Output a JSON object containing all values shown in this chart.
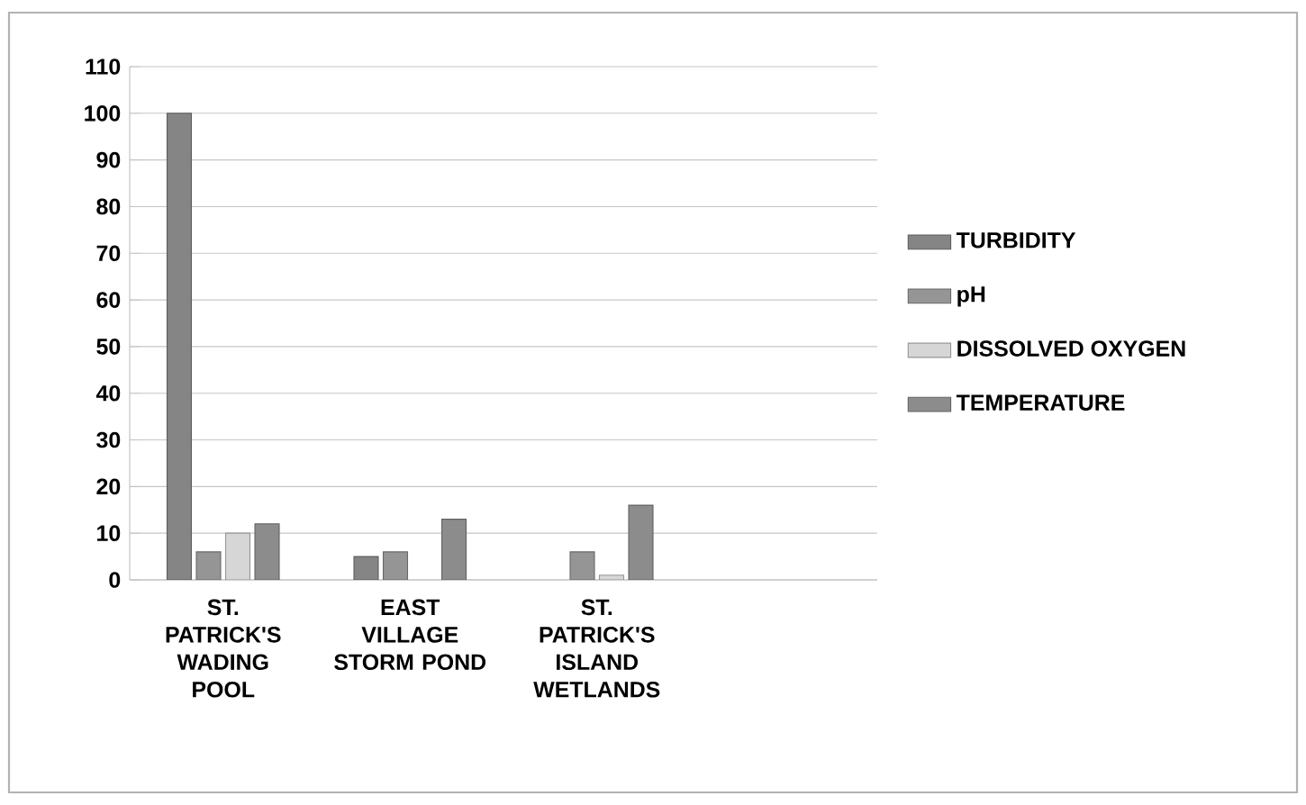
{
  "chart_data": {
    "type": "bar",
    "categories": [
      "ST. PATRICK'S WADING POOL",
      "EAST VILLAGE STORM POND",
      "ST. PATRICK'S ISLAND WETLANDS",
      null
    ],
    "series": [
      {
        "name": "TURBIDITY",
        "color": "#858585",
        "values": [
          100,
          5,
          null,
          null
        ]
      },
      {
        "name": "pH",
        "color": "#959595",
        "values": [
          6,
          6,
          6,
          null
        ]
      },
      {
        "name": "DISSOLVED OXYGEN",
        "color": "#d6d6d6",
        "values": [
          10,
          null,
          1,
          null
        ]
      },
      {
        "name": "TEMPERATURE",
        "color": "#8c8c8c",
        "values": [
          12,
          13,
          16,
          null
        ]
      }
    ],
    "ylim": [
      0,
      110
    ],
    "yticks": [
      0,
      10,
      20,
      30,
      40,
      50,
      60,
      70,
      80,
      90,
      100,
      110
    ],
    "grid": "y",
    "legend": "right"
  }
}
